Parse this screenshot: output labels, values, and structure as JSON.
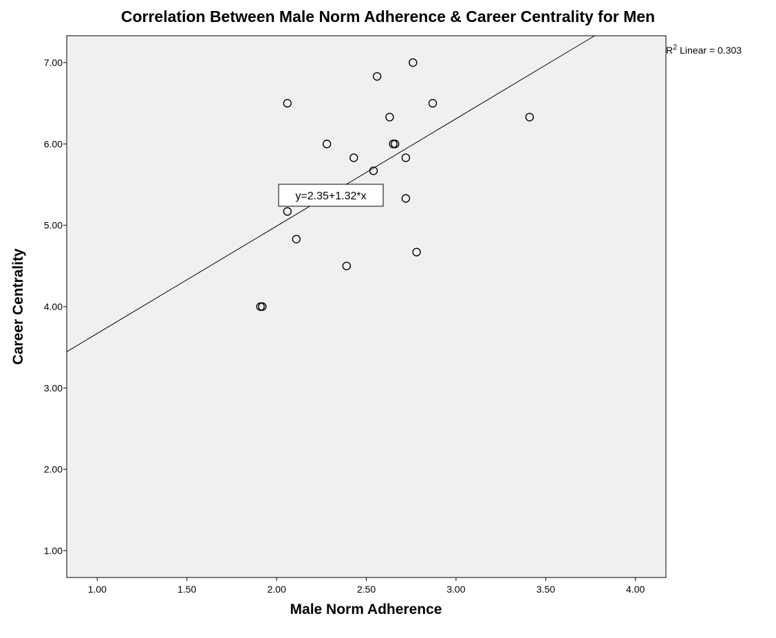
{
  "chart_data": {
    "type": "scatter",
    "title": "Correlation Between Male Norm Adherence & Career Centrality for Men",
    "xlabel": "Male Norm Adherence",
    "ylabel": "Career Centrality",
    "xlim": [
      0.83,
      4.17
    ],
    "ylim": [
      0.67,
      7.33
    ],
    "xticks": [
      1.0,
      1.5,
      2.0,
      2.5,
      3.0,
      3.5,
      4.0
    ],
    "xtick_labels": [
      "1.00",
      "1.50",
      "2.00",
      "2.50",
      "3.00",
      "3.50",
      "4.00"
    ],
    "yticks": [
      1.0,
      2.0,
      3.0,
      4.0,
      5.0,
      6.0,
      7.0
    ],
    "ytick_labels": [
      "1.00",
      "2.00",
      "3.00",
      "4.00",
      "5.00",
      "6.00",
      "7.00"
    ],
    "grid": false,
    "plot_background": "#f0f0f0",
    "marker": "open-circle",
    "points": [
      {
        "x": 2.76,
        "y": 7.0
      },
      {
        "x": 2.56,
        "y": 6.83
      },
      {
        "x": 2.06,
        "y": 6.5
      },
      {
        "x": 2.87,
        "y": 6.5
      },
      {
        "x": 2.63,
        "y": 6.33
      },
      {
        "x": 3.41,
        "y": 6.33
      },
      {
        "x": 2.28,
        "y": 6.0
      },
      {
        "x": 2.65,
        "y": 6.0
      },
      {
        "x": 2.66,
        "y": 6.0
      },
      {
        "x": 2.43,
        "y": 5.83
      },
      {
        "x": 2.72,
        "y": 5.83
      },
      {
        "x": 2.54,
        "y": 5.67
      },
      {
        "x": 2.72,
        "y": 5.33
      },
      {
        "x": 2.06,
        "y": 5.17
      },
      {
        "x": 2.11,
        "y": 4.83
      },
      {
        "x": 2.78,
        "y": 4.67
      },
      {
        "x": 2.39,
        "y": 4.5
      },
      {
        "x": 1.91,
        "y": 4.0
      },
      {
        "x": 1.92,
        "y": 4.0
      }
    ],
    "fit_line": {
      "type": "linear",
      "intercept": 2.35,
      "slope": 1.32,
      "equation_label": "y=2.35+1.32*x",
      "r2_prefix": "R",
      "r2_superscript": "2",
      "r2_text": " Linear = 0.303"
    }
  }
}
